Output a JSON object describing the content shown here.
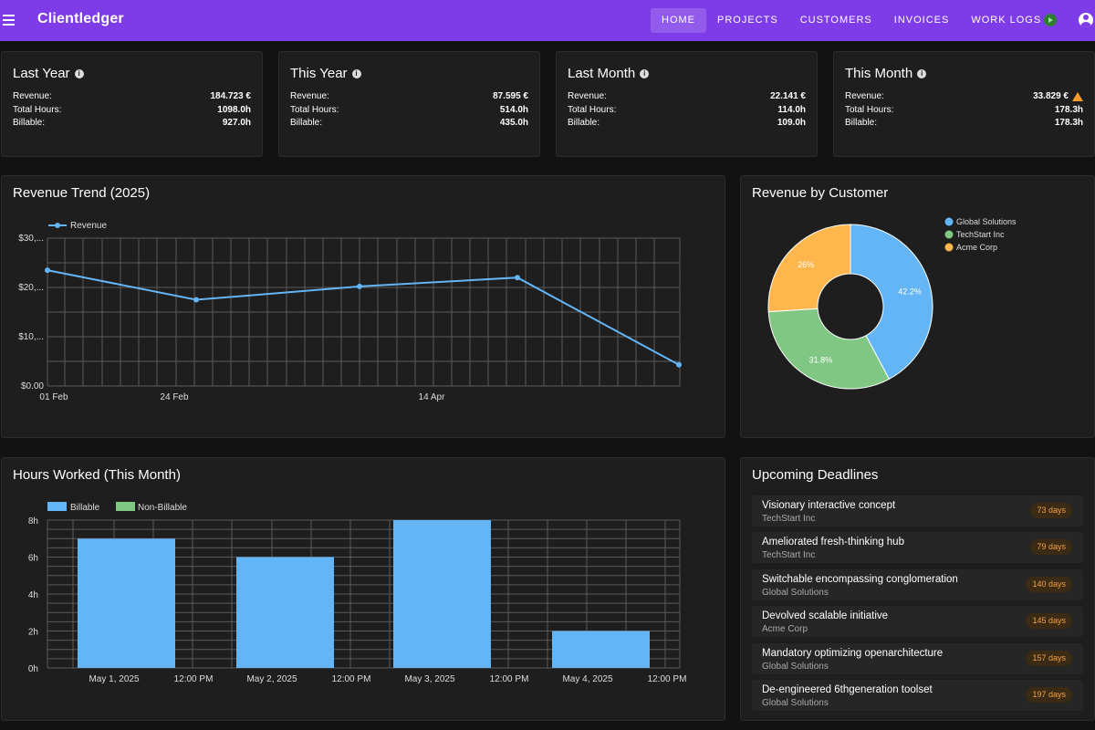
{
  "appbar": {
    "brand": "Clientledger",
    "nav": [
      "HOME",
      "PROJECTS",
      "CUSTOMERS",
      "INVOICES",
      "WORK LOGS"
    ]
  },
  "stats": [
    {
      "title": "Last Year",
      "rows": [
        {
          "label": "Revenue:",
          "value": "184.723 €"
        },
        {
          "label": "Total Hours:",
          "value": "1098.0h"
        },
        {
          "label": "Billable:",
          "value": "927.0h"
        }
      ]
    },
    {
      "title": "This Year",
      "rows": [
        {
          "label": "Revenue:",
          "value": "87.595 €"
        },
        {
          "label": "Total Hours:",
          "value": "514.0h"
        },
        {
          "label": "Billable:",
          "value": "435.0h"
        }
      ]
    },
    {
      "title": "Last Month",
      "rows": [
        {
          "label": "Revenue:",
          "value": "22.141 €"
        },
        {
          "label": "Total Hours:",
          "value": "114.0h"
        },
        {
          "label": "Billable:",
          "value": "109.0h"
        }
      ]
    },
    {
      "title": "This Month",
      "rows": [
        {
          "label": "Revenue:",
          "value": "33.829 €"
        },
        {
          "label": "Total Hours:",
          "value": "178.3h"
        },
        {
          "label": "Billable:",
          "value": "178.3h"
        }
      ]
    }
  ],
  "colors": {
    "blue": "#64b5f6",
    "green": "#81c784",
    "orange": "#ffb74d",
    "accent": "#7e3ce8"
  },
  "chart_data": [
    {
      "type": "line",
      "title": "Revenue Trend (2025)",
      "series": [
        {
          "name": "Revenue",
          "values": [
            23500,
            17500,
            20200,
            22000,
            4300
          ]
        }
      ],
      "x_ticks": [
        "01 Feb",
        "24 Feb",
        "14 Apr"
      ],
      "y_ticks": [
        "$30,...",
        "$20,...",
        "$10,...",
        "$0.00"
      ],
      "ylim": [
        0,
        30000
      ]
    },
    {
      "type": "pie",
      "title": "Revenue by Customer",
      "categories": [
        "Global Solutions",
        "TechStart Inc",
        "Acme Corp"
      ],
      "values": [
        42.2,
        31.8,
        26
      ],
      "labels": [
        "42.2%",
        "31.8%",
        "26%"
      ]
    },
    {
      "type": "bar",
      "title": "Hours Worked (This Month)",
      "legend": [
        "Billable",
        "Non-Billable"
      ],
      "categories": [
        "May 1, 2025",
        "May 2, 2025",
        "May 3, 2025",
        "May 4, 2025"
      ],
      "series": [
        {
          "name": "Billable",
          "values": [
            7,
            6,
            8,
            2
          ]
        },
        {
          "name": "Non-Billable",
          "values": [
            0,
            0,
            0,
            0
          ]
        }
      ],
      "x_ticks": [
        "May 1, 2025",
        "12:00 PM",
        "May 2, 2025",
        "12:00 PM",
        "May 3, 2025",
        "12:00 PM",
        "May 4, 2025",
        "12:00 PM"
      ],
      "y_ticks": [
        "8h",
        "6h",
        "4h",
        "2h",
        "0h"
      ],
      "ylim": [
        0,
        8
      ]
    }
  ],
  "deadlines": {
    "title": "Upcoming Deadlines",
    "items": [
      {
        "title": "Visionary interactive concept",
        "customer": "TechStart Inc",
        "days": "73 days"
      },
      {
        "title": "Ameliorated fresh-thinking hub",
        "customer": "TechStart Inc",
        "days": "79 days"
      },
      {
        "title": "Switchable encompassing conglomeration",
        "customer": "Global Solutions",
        "days": "140 days"
      },
      {
        "title": "Devolved scalable initiative",
        "customer": "Acme Corp",
        "days": "145 days"
      },
      {
        "title": "Mandatory optimizing openarchitecture",
        "customer": "Global Solutions",
        "days": "157 days"
      },
      {
        "title": "De-engineered 6thgeneration toolset",
        "customer": "Global Solutions",
        "days": "197 days"
      }
    ]
  }
}
